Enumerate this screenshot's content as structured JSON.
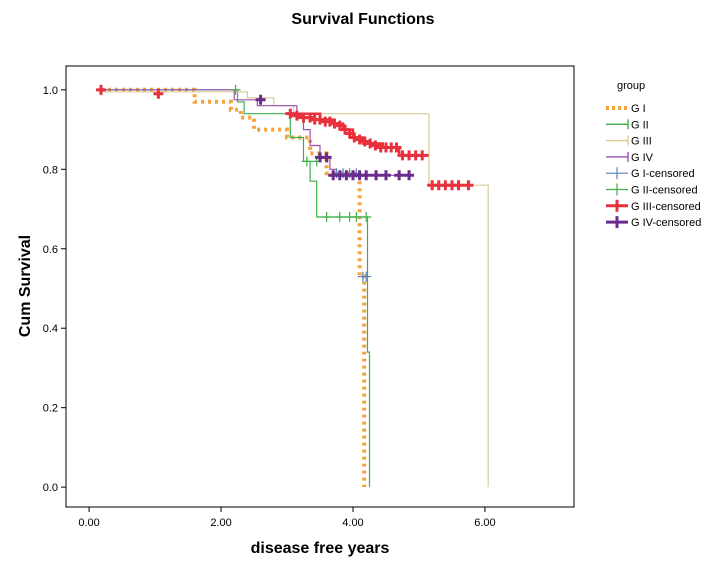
{
  "chart_data": {
    "type": "line",
    "title": "Survival Functions",
    "xlabel": "disease free years",
    "ylabel": "Cum Survival",
    "xlim": [
      -0.35,
      7.35
    ],
    "ylim": [
      -0.05,
      1.06
    ],
    "xticks": [
      0,
      2,
      4,
      6
    ],
    "xtick_labels": [
      "0.00",
      "2.00",
      "4.00",
      "6.00"
    ],
    "yticks": [
      0,
      0.2,
      0.4,
      0.6,
      0.8,
      1.0
    ],
    "ytick_labels": [
      "0.0",
      "0.2",
      "0.4",
      "0.6",
      "0.8",
      "1.0"
    ],
    "grid": false,
    "legend": {
      "title": "group",
      "placement": "right",
      "entries": [
        "G I",
        "G II",
        "G III",
        "G IV",
        "G I-censored",
        "G II-censored",
        "G III-censored",
        "G IV-censored"
      ]
    },
    "series": [
      {
        "name": "G I",
        "color": "#f2a33a",
        "style": "dotted",
        "x": [
          0.18,
          1.6,
          1.6,
          2.15,
          2.15,
          2.3,
          2.3,
          2.5,
          2.5,
          3.0,
          3.0,
          3.35,
          3.35,
          3.6,
          3.6,
          4.1,
          4.1,
          4.17,
          4.17
        ],
        "y": [
          1.0,
          1.0,
          0.97,
          0.97,
          0.95,
          0.95,
          0.93,
          0.93,
          0.9,
          0.9,
          0.88,
          0.88,
          0.84,
          0.84,
          0.79,
          0.79,
          0.53,
          0.53,
          0.0
        ]
      },
      {
        "name": "G II",
        "color": "#3fae49",
        "style": "solid",
        "x": [
          0.18,
          2.25,
          2.25,
          2.35,
          2.35,
          3.05,
          3.05,
          3.25,
          3.25,
          3.35,
          3.35,
          3.45,
          3.45,
          4.22,
          4.22,
          4.25,
          4.25
        ],
        "y": [
          1.0,
          1.0,
          0.97,
          0.97,
          0.94,
          0.94,
          0.88,
          0.88,
          0.82,
          0.82,
          0.77,
          0.77,
          0.68,
          0.68,
          0.34,
          0.34,
          0.0
        ]
      },
      {
        "name": "G III",
        "color": "#d8cd95",
        "style": "solid",
        "x": [
          0.18,
          2.4,
          2.4,
          2.8,
          2.8,
          3.1,
          3.1,
          5.15,
          5.15,
          6.05,
          6.05
        ],
        "y": [
          0.995,
          0.995,
          0.98,
          0.98,
          0.96,
          0.96,
          0.94,
          0.94,
          0.76,
          0.76,
          0.0
        ]
      },
      {
        "name": "G IV",
        "color": "#9b4fb0",
        "style": "solid",
        "x": [
          0.18,
          2.2,
          2.2,
          2.55,
          2.55,
          3.15,
          3.15,
          3.25,
          3.25,
          3.35,
          3.35,
          3.5,
          3.5,
          3.65,
          3.65,
          3.75,
          3.75,
          4.85
        ],
        "y": [
          1.0,
          1.0,
          0.975,
          0.975,
          0.96,
          0.96,
          0.93,
          0.93,
          0.9,
          0.9,
          0.86,
          0.86,
          0.83,
          0.83,
          0.8,
          0.8,
          0.785,
          0.785
        ]
      },
      {
        "name": "G III",
        "color": "#e8313c",
        "style": "solid",
        "x": [
          3.1,
          3.5,
          3.5,
          3.7,
          3.7,
          3.85,
          3.85,
          4.0,
          4.0,
          4.15,
          4.15,
          4.45,
          4.45,
          4.7,
          4.7,
          5.15
        ],
        "y": [
          0.94,
          0.94,
          0.925,
          0.925,
          0.915,
          0.915,
          0.9,
          0.9,
          0.88,
          0.88,
          0.865,
          0.865,
          0.855,
          0.855,
          0.835,
          0.835
        ]
      }
    ],
    "censored": [
      {
        "name": "G I-censored",
        "color": "#5b7fbe",
        "x": [
          3.75,
          3.85,
          3.95,
          4.05,
          4.15,
          4.2
        ],
        "y": [
          0.79,
          0.79,
          0.79,
          0.79,
          0.53,
          0.53
        ]
      },
      {
        "name": "G II-censored",
        "color": "#3fae49",
        "x": [
          2.22,
          3.3,
          3.45,
          3.6,
          3.8,
          3.95,
          4.05,
          4.2
        ],
        "y": [
          1.0,
          0.82,
          0.82,
          0.68,
          0.68,
          0.68,
          0.68,
          0.68
        ]
      },
      {
        "name": "G III-censored",
        "color": "#e8313c",
        "x": [
          0.18,
          1.05,
          3.05,
          3.15,
          3.25,
          3.35,
          3.42,
          3.5,
          3.58,
          3.65,
          3.72,
          3.8,
          3.88,
          3.95,
          4.02,
          4.1,
          4.18,
          4.26,
          4.34,
          4.42,
          4.5,
          4.58,
          4.66,
          4.75,
          4.85,
          4.95,
          5.05,
          5.2,
          5.3,
          5.4,
          5.5,
          5.6,
          5.75
        ],
        "y": [
          1.0,
          0.99,
          0.94,
          0.935,
          0.93,
          0.93,
          0.925,
          0.925,
          0.92,
          0.92,
          0.915,
          0.91,
          0.9,
          0.89,
          0.88,
          0.875,
          0.87,
          0.865,
          0.86,
          0.855,
          0.855,
          0.855,
          0.855,
          0.835,
          0.835,
          0.835,
          0.835,
          0.76,
          0.76,
          0.76,
          0.76,
          0.76,
          0.76
        ]
      },
      {
        "name": "G IV-censored",
        "color": "#6a2c8c",
        "x": [
          2.6,
          3.5,
          3.6,
          3.7,
          3.8,
          3.9,
          4.0,
          4.1,
          4.2,
          4.35,
          4.5,
          4.7,
          4.85
        ],
        "y": [
          0.975,
          0.83,
          0.83,
          0.785,
          0.785,
          0.785,
          0.785,
          0.785,
          0.785,
          0.785,
          0.785,
          0.785,
          0.785
        ]
      }
    ]
  }
}
